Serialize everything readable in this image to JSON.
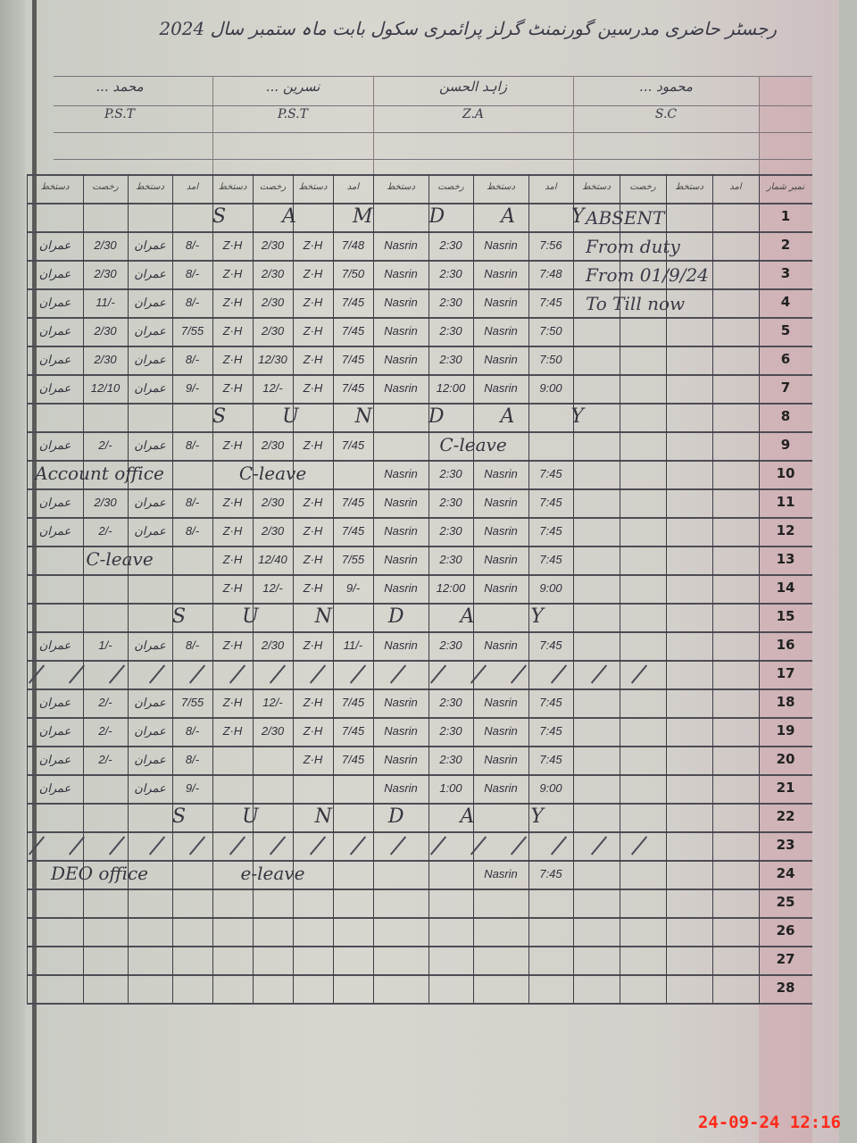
{
  "title": "رجسٹر حاضری مدرسین گورنمنٹ گرلز پرائمری سکول بابت ماہ ستمبر سال 2024",
  "teachers": [
    {
      "name": "محمود ... ",
      "designation": "S.C"
    },
    {
      "name": "زاہد الحسن",
      "designation": "Z.A"
    },
    {
      "name": "نسرین ... ",
      "designation": "P.S.T"
    },
    {
      "name": "محمد ... ",
      "designation": "P.S.T"
    }
  ],
  "serial_header": "نمبر شمار",
  "column_headers": [
    "دستخط",
    "رخصت",
    "دستخط",
    "آمد",
    "دستخط",
    "رخصت",
    "دستخط",
    "آمد",
    "دستخط",
    "رخصت",
    "دستخط",
    "آمد",
    "دستخط",
    "رخصت",
    "دستخط",
    "آمد"
  ],
  "rows": [
    {
      "n": "1",
      "notes": [
        {
          "text": "S A M D A Y",
          "from": 4,
          "to": 9
        }
      ],
      "cells": []
    },
    {
      "n": "2",
      "cells": [
        "عمران",
        "2/30",
        "عمران",
        "8/-",
        "Z·H",
        "2/30",
        "Z·H",
        "7/48",
        "Nasrin",
        "2:30",
        "Nasrin",
        "7:56"
      ]
    },
    {
      "n": "3",
      "cells": [
        "عمران",
        "2/30",
        "عمران",
        "8/-",
        "Z·H",
        "2/30",
        "Z·H",
        "7/50",
        "Nasrin",
        "2:30",
        "Nasrin",
        "7:48"
      ]
    },
    {
      "n": "4",
      "cells": [
        "عمران",
        "11/-",
        "عمران",
        "8/-",
        "Z·H",
        "2/30",
        "Z·H",
        "7/45",
        "Nasrin",
        "2:30",
        "Nasrin",
        "7:45"
      ]
    },
    {
      "n": "5",
      "cells": [
        "عمران",
        "2/30",
        "عمران",
        "7/55",
        "Z·H",
        "2/30",
        "Z·H",
        "7/45",
        "Nasrin",
        "2:30",
        "Nasrin",
        "7:50"
      ]
    },
    {
      "n": "6",
      "cells": [
        "عمران",
        "2/30",
        "عمران",
        "8/-",
        "Z·H",
        "12/30",
        "Z·H",
        "7/45",
        "Nasrin",
        "2:30",
        "Nasrin",
        "7:50"
      ]
    },
    {
      "n": "7",
      "cells": [
        "عمران",
        "12/10",
        "عمران",
        "9/-",
        "Z·H",
        "12/-",
        "Z·H",
        "7/45",
        "Nasrin",
        "12:00",
        "Nasrin",
        "9:00"
      ]
    },
    {
      "n": "8",
      "notes": [
        {
          "text": "S U N D A Y",
          "from": 4,
          "to": 10
        }
      ],
      "cells": []
    },
    {
      "n": "9",
      "notes": [
        {
          "text": "C-leave",
          "from": 8,
          "to": 11
        }
      ],
      "cells": [
        "عمران",
        "2/-",
        "عمران",
        "8/-",
        "Z·H",
        "2/30",
        "Z·H",
        "7/45"
      ]
    },
    {
      "n": "10",
      "notes": [
        {
          "text": "Account office",
          "from": 0,
          "to": 2
        },
        {
          "text": "C-leave",
          "from": 3,
          "to": 7
        }
      ],
      "cells": [
        "",
        "",
        "",
        "",
        "",
        "",
        "",
        "",
        "Nasrin",
        "2:30",
        "Nasrin",
        "7:45"
      ]
    },
    {
      "n": "11",
      "cells": [
        "عمران",
        "2/30",
        "عمران",
        "8/-",
        "Z·H",
        "2/30",
        "Z·H",
        "7/45",
        "Nasrin",
        "2:30",
        "Nasrin",
        "7:45"
      ]
    },
    {
      "n": "12",
      "cells": [
        "عمران",
        "2/-",
        "عمران",
        "8/-",
        "Z·H",
        "2/30",
        "Z·H",
        "7/45",
        "Nasrin",
        "2:30",
        "Nasrin",
        "7:45"
      ]
    },
    {
      "n": "13",
      "notes": [
        {
          "text": "C-leave",
          "from": 0,
          "to": 3
        }
      ],
      "cells": [
        "",
        "",
        "",
        "",
        "Z·H",
        "12/40",
        "Z·H",
        "7/55",
        "Nasrin",
        "2:30",
        "Nasrin",
        "7:45"
      ]
    },
    {
      "n": "14",
      "cells": [
        "",
        "",
        "",
        "",
        "Z·H",
        "12/-",
        "Z·H",
        "9/-",
        "Nasrin",
        "12:00",
        "Nasrin",
        "9:00"
      ]
    },
    {
      "n": "15",
      "notes": [
        {
          "text": "S U N D A Y",
          "from": 3,
          "to": 9
        }
      ],
      "cells": []
    },
    {
      "n": "16",
      "cells": [
        "عمران",
        "1/-",
        "عمران",
        "8/-",
        "Z·H",
        "2/30",
        "Z·H",
        "11/-",
        "Nasrin",
        "2:30",
        "Nasrin",
        "7:45"
      ]
    },
    {
      "n": "17",
      "slashes": true,
      "cells": []
    },
    {
      "n": "18",
      "cells": [
        "عمران",
        "2/-",
        "عمران",
        "7/55",
        "Z·H",
        "12/-",
        "Z·H",
        "7/45",
        "Nasrin",
        "2:30",
        "Nasrin",
        "7:45"
      ]
    },
    {
      "n": "19",
      "cells": [
        "عمران",
        "2/-",
        "عمران",
        "8/-",
        "Z·H",
        "2/30",
        "Z·H",
        "7/45",
        "Nasrin",
        "2:30",
        "Nasrin",
        "7:45"
      ]
    },
    {
      "n": "20",
      "cells": [
        "عمران",
        "2/-",
        "عمران",
        "8/-",
        "",
        "",
        "Z·H",
        "7/45",
        "Nasrin",
        "2:30",
        "Nasrin",
        "7:45"
      ]
    },
    {
      "n": "21",
      "cells": [
        "عمران",
        "",
        "عمران",
        "9/-",
        "",
        "",
        "",
        "",
        "Nasrin",
        "1:00",
        "Nasrin",
        "9:00"
      ]
    },
    {
      "n": "22",
      "notes": [
        {
          "text": "S U N D A Y",
          "from": 3,
          "to": 9
        }
      ],
      "cells": []
    },
    {
      "n": "23",
      "slashes": true,
      "cells": []
    },
    {
      "n": "24",
      "notes": [
        {
          "text": "DEO office",
          "from": 0,
          "to": 2
        },
        {
          "text": "e-leave",
          "from": 3,
          "to": 7
        }
      ],
      "cells": [
        "",
        "",
        "",
        "",
        "",
        "",
        "",
        "",
        "",
        "",
        "Nasrin",
        "7:45"
      ]
    },
    {
      "n": "25",
      "cells": []
    },
    {
      "n": "26",
      "cells": []
    },
    {
      "n": "27",
      "cells": []
    },
    {
      "n": "28",
      "cells": []
    }
  ],
  "side_note": [
    "ABSENT",
    "From duty",
    "From 01/9/24",
    "To Till now"
  ],
  "timestamp": "24-09-24  12:16",
  "colors": {
    "ink": "#30303c",
    "margin_pink": "#d296a0",
    "timestamp": "#ff2a1a"
  }
}
